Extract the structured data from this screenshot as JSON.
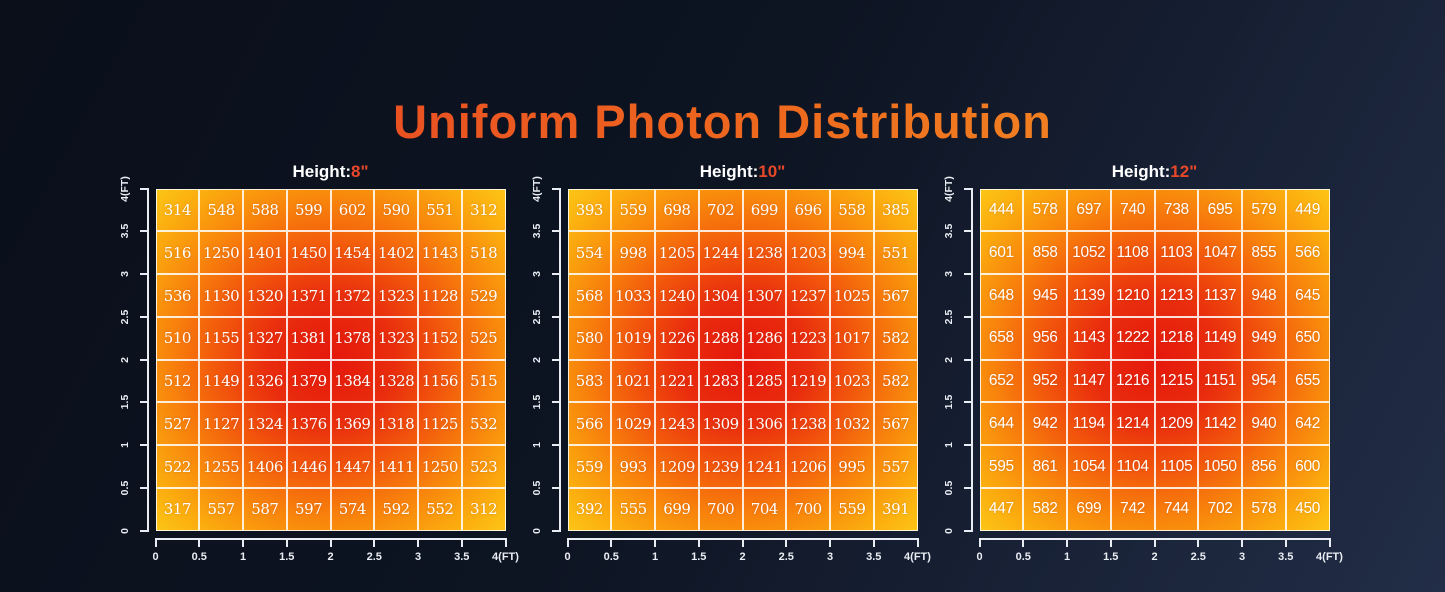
{
  "title": "Uniform Photon Distribution",
  "colors": {
    "background_start": "#0a0f1a",
    "background_end": "#222d47",
    "title_gradient_start": "#e63a26",
    "title_gradient_end": "#f5a127",
    "accent_value": "#e8482a",
    "heat_center_red": "#e5170c",
    "heat_mid_orange": "#f8820c",
    "heat_corner_yellow": "#fdc615",
    "axis_color": "#e9edf3"
  },
  "chart_data": [
    {
      "type": "heatmap",
      "title_label": "Height:",
      "title_value": "8\"",
      "x_ticks": [
        "0",
        "0.5",
        "1",
        "1.5",
        "2",
        "2.5",
        "3",
        "3.5",
        "4(FT)"
      ],
      "y_ticks": [
        "4(FT)",
        "3.5",
        "3",
        "2.5",
        "2",
        "1.5",
        "1",
        "0.5",
        "0"
      ],
      "rows": [
        [
          314,
          548,
          588,
          599,
          602,
          590,
          551,
          312
        ],
        [
          516,
          1250,
          1401,
          1450,
          1454,
          1402,
          1143,
          518
        ],
        [
          536,
          1130,
          1320,
          1371,
          1372,
          1323,
          1128,
          529
        ],
        [
          510,
          1155,
          1327,
          1381,
          1378,
          1323,
          1152,
          525
        ],
        [
          512,
          1149,
          1326,
          1379,
          1384,
          1328,
          1156,
          515
        ],
        [
          527,
          1127,
          1324,
          1376,
          1369,
          1318,
          1125,
          532
        ],
        [
          522,
          1255,
          1406,
          1446,
          1447,
          1411,
          1250,
          523
        ],
        [
          317,
          557,
          587,
          597,
          574,
          592,
          552,
          312
        ]
      ]
    },
    {
      "type": "heatmap",
      "title_label": "Height:",
      "title_value": "10\"",
      "x_ticks": [
        "0",
        "0.5",
        "1",
        "1.5",
        "2",
        "2.5",
        "3",
        "3.5",
        "4(FT)"
      ],
      "y_ticks": [
        "4(FT)",
        "3.5",
        "3",
        "2.5",
        "2",
        "1.5",
        "1",
        "0.5",
        "0"
      ],
      "rows": [
        [
          393,
          559,
          698,
          702,
          699,
          696,
          558,
          385
        ],
        [
          554,
          998,
          1205,
          1244,
          1238,
          1203,
          994,
          551
        ],
        [
          568,
          1033,
          1240,
          1304,
          1307,
          1237,
          1025,
          567
        ],
        [
          580,
          1019,
          1226,
          1288,
          1286,
          1223,
          1017,
          582
        ],
        [
          583,
          1021,
          1221,
          1283,
          1285,
          1219,
          1023,
          582
        ],
        [
          566,
          1029,
          1243,
          1309,
          1306,
          1238,
          1032,
          567
        ],
        [
          559,
          993,
          1209,
          1239,
          1241,
          1206,
          995,
          557
        ],
        [
          392,
          555,
          699,
          700,
          704,
          700,
          559,
          391
        ]
      ]
    },
    {
      "type": "heatmap",
      "title_label": "Height:",
      "title_value": "12\"",
      "x_ticks": [
        "0",
        "0.5",
        "1",
        "1.5",
        "2",
        "2.5",
        "3",
        "3.5",
        "4(FT)"
      ],
      "y_ticks": [
        "4(FT)",
        "3.5",
        "3",
        "2.5",
        "2",
        "1.5",
        "1",
        "0.5",
        "0"
      ],
      "rows": [
        [
          444,
          578,
          697,
          740,
          738,
          695,
          579,
          449
        ],
        [
          601,
          858,
          1052,
          1108,
          1103,
          1047,
          855,
          566
        ],
        [
          648,
          945,
          1139,
          1210,
          1213,
          1137,
          948,
          645
        ],
        [
          658,
          956,
          1143,
          1222,
          1218,
          1149,
          949,
          650
        ],
        [
          652,
          952,
          1147,
          1216,
          1215,
          1151,
          954,
          655
        ],
        [
          644,
          942,
          1194,
          1214,
          1209,
          1142,
          940,
          642
        ],
        [
          595,
          861,
          1054,
          1104,
          1105,
          1050,
          856,
          600
        ],
        [
          447,
          582,
          699,
          742,
          744,
          702,
          578,
          450
        ]
      ]
    }
  ]
}
